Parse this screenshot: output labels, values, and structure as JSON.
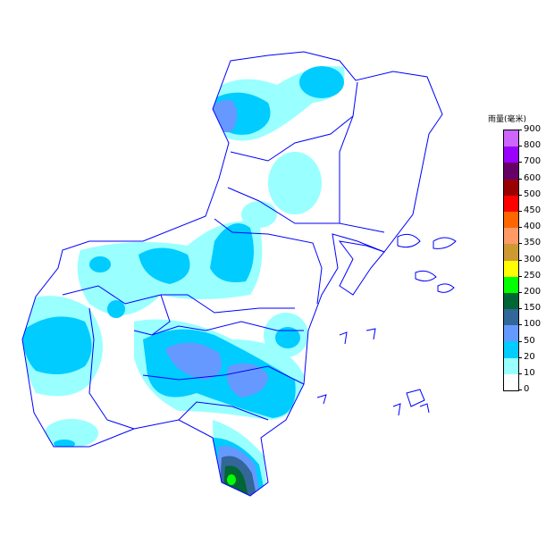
{
  "legend": {
    "title": "雨量(毫米)",
    "levels": [
      {
        "label": "0",
        "color": "#FFFFFF"
      },
      {
        "label": "10",
        "color": "#99FFFF"
      },
      {
        "label": "20",
        "color": "#00CCFF"
      },
      {
        "label": "50",
        "color": "#6699FF"
      },
      {
        "label": "100",
        "color": "#336699"
      },
      {
        "label": "150",
        "color": "#006633"
      },
      {
        "label": "200",
        "color": "#00FF00"
      },
      {
        "label": "250",
        "color": "#FFFF00"
      },
      {
        "label": "300",
        "color": "#CC9933"
      },
      {
        "label": "350",
        "color": "#FF9966"
      },
      {
        "label": "400",
        "color": "#FF6600"
      },
      {
        "label": "450",
        "color": "#FF0000"
      },
      {
        "label": "500",
        "color": "#990000"
      },
      {
        "label": "600",
        "color": "#660066"
      },
      {
        "label": "700",
        "color": "#9900FF"
      },
      {
        "label": "800",
        "color": "#CC66FF"
      },
      {
        "label": "900",
        "color": null
      }
    ]
  },
  "boundary_color": "#0000FF"
}
